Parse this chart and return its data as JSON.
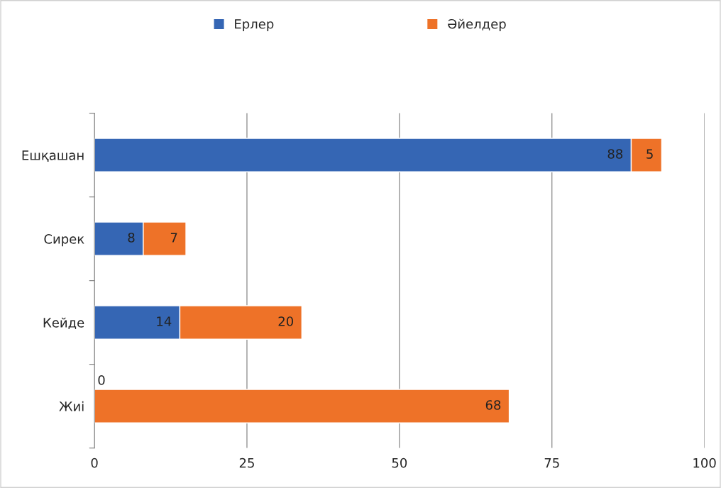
{
  "chart_data": {
    "type": "bar",
    "orientation": "horizontal",
    "stacked": true,
    "categories": [
      "Ешқашан",
      "Сирек",
      "Кейде",
      "Жиі"
    ],
    "series": [
      {
        "name": "Ерлер",
        "color": "#3566b4",
        "values": [
          88,
          8,
          14,
          0
        ],
        "value_labels": [
          "88",
          "8",
          "14",
          null
        ]
      },
      {
        "name": "Әйелдер",
        "color": "#ee7228",
        "values": [
          5,
          7,
          20,
          68
        ],
        "value_labels": [
          "5",
          "7",
          "20",
          "68"
        ]
      }
    ],
    "xlim": [
      0,
      100
    ],
    "xticks": [
      0,
      25,
      50,
      75,
      100
    ],
    "annotations": [
      {
        "text": "0",
        "x": 0,
        "y": "Жиі"
      }
    ],
    "grid": "x",
    "legend": "top"
  }
}
